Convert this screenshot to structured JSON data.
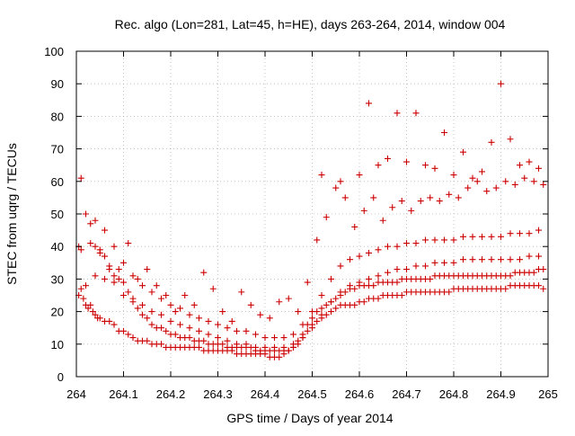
{
  "chart_data": {
    "type": "scatter",
    "title": "Rec. algo (Lon=281, Lat=45, h=HE), days 263-264, 2014, window 004",
    "xlabel": "GPS time / Days of year 2014",
    "ylabel": "STEC from uqrg / TECUs",
    "xlim": [
      264,
      265
    ],
    "ylim": [
      0,
      100
    ],
    "xticks": [
      264,
      264.1,
      264.2,
      264.3,
      264.4,
      264.5,
      264.6,
      264.7,
      264.8,
      264.9,
      265
    ],
    "xtick_labels": [
      "264",
      "264.1",
      "264.2",
      "264.3",
      "264.4",
      "264.5",
      "264.6",
      "264.7",
      "264.8",
      "264.9",
      "265"
    ],
    "yticks": [
      0,
      10,
      20,
      30,
      40,
      50,
      60,
      70,
      80,
      90,
      100
    ],
    "ytick_labels": [
      "0",
      "10",
      "20",
      "30",
      "40",
      "50",
      "60",
      "70",
      "80",
      "90",
      "100"
    ],
    "grid": true,
    "marker": "+",
    "color": "#cc0000",
    "series": [
      {
        "x": [
          264.005,
          264.01,
          264.015,
          264.02,
          264.025,
          264.03,
          264.035,
          264.04,
          264.045,
          264.05,
          264.06,
          264.07,
          264.08,
          264.09,
          264.1,
          264.11,
          264.12,
          264.13,
          264.14,
          264.15,
          264.16,
          264.17,
          264.18,
          264.19,
          264.2,
          264.21,
          264.22,
          264.23,
          264.24,
          264.25,
          264.26,
          264.27,
          264.28,
          264.29,
          264.3,
          264.31,
          264.32,
          264.33,
          264.34,
          264.35,
          264.36,
          264.37,
          264.38,
          264.39,
          264.4,
          264.41,
          264.42,
          264.43,
          264.44,
          264.45,
          264.46,
          264.47,
          264.48,
          264.49,
          264.5,
          264.51,
          264.52,
          264.53,
          264.54,
          264.55,
          264.56,
          264.57,
          264.58,
          264.59,
          264.6,
          264.61,
          264.62,
          264.63,
          264.64,
          264.65,
          264.66,
          264.67,
          264.68,
          264.69,
          264.7,
          264.71,
          264.72,
          264.73,
          264.74,
          264.75,
          264.76,
          264.77,
          264.78,
          264.79,
          264.8,
          264.81,
          264.82,
          264.83,
          264.84,
          264.85,
          264.86,
          264.87,
          264.88,
          264.89,
          264.9,
          264.91,
          264.92,
          264.93,
          264.94,
          264.95,
          264.96,
          264.97,
          264.98,
          264.99
        ],
        "y": [
          25,
          27,
          24,
          22,
          21,
          22,
          20,
          19,
          18,
          18,
          17,
          17,
          16,
          14,
          14,
          13,
          12,
          11,
          11,
          11,
          10,
          10,
          10,
          9,
          9,
          9,
          9,
          9,
          9,
          9,
          9,
          8,
          8,
          8,
          8,
          8,
          8,
          8,
          7,
          7,
          7,
          7,
          7,
          7,
          7,
          6,
          6,
          6,
          7,
          8,
          9,
          10,
          12,
          14,
          16,
          17,
          18,
          19,
          20,
          21,
          22,
          22,
          22,
          22,
          23,
          23,
          24,
          24,
          24,
          25,
          25,
          25,
          25,
          25,
          26,
          26,
          26,
          26,
          26,
          26,
          26,
          26,
          26,
          26,
          27,
          27,
          27,
          27,
          27,
          27,
          27,
          27,
          27,
          27,
          27,
          27,
          28,
          28,
          28,
          28,
          28,
          28,
          28,
          27
        ]
      },
      {
        "x": [
          264.005,
          264.01,
          264.02,
          264.03,
          264.04,
          264.05,
          264.06,
          264.07,
          264.08,
          264.09,
          264.1,
          264.11,
          264.12,
          264.13,
          264.14,
          264.15,
          264.16,
          264.17,
          264.18,
          264.19,
          264.2,
          264.21,
          264.22,
          264.23,
          264.24,
          264.25,
          264.26,
          264.27,
          264.28,
          264.29,
          264.3,
          264.31,
          264.32,
          264.33,
          264.34,
          264.35,
          264.36,
          264.37,
          264.38,
          264.39,
          264.4,
          264.41,
          264.42,
          264.43,
          264.44,
          264.45,
          264.46,
          264.47,
          264.48,
          264.49,
          264.5,
          264.51,
          264.52,
          264.53,
          264.54,
          264.55,
          264.56,
          264.57,
          264.58,
          264.59,
          264.6,
          264.61,
          264.62,
          264.63,
          264.64,
          264.65,
          264.66,
          264.67,
          264.68,
          264.69,
          264.7,
          264.71,
          264.72,
          264.73,
          264.74,
          264.75,
          264.76,
          264.77,
          264.78,
          264.79,
          264.8,
          264.81,
          264.82,
          264.83,
          264.84,
          264.85,
          264.86,
          264.87,
          264.88,
          264.89,
          264.9,
          264.91,
          264.92,
          264.93,
          264.94,
          264.95,
          264.96,
          264.97,
          264.98,
          264.99
        ],
        "y": [
          40,
          39,
          28,
          41,
          40,
          39,
          37,
          33,
          31,
          30,
          29,
          26,
          24,
          21,
          19,
          18,
          16,
          15,
          15,
          14,
          13,
          13,
          12,
          12,
          12,
          11,
          11,
          11,
          10,
          10,
          10,
          10,
          9,
          9,
          9,
          9,
          9,
          9,
          8,
          8,
          8,
          8,
          8,
          8,
          8,
          8,
          9,
          11,
          13,
          16,
          18,
          20,
          21,
          22,
          23,
          24,
          25,
          26,
          27,
          27,
          28,
          28,
          28,
          28,
          29,
          29,
          29,
          29,
          29,
          30,
          30,
          30,
          30,
          30,
          30,
          30,
          31,
          31,
          31,
          31,
          31,
          31,
          31,
          31,
          31,
          31,
          31,
          31,
          31,
          31,
          31,
          31,
          31,
          32,
          32,
          32,
          32,
          32,
          33,
          33
        ]
      },
      {
        "x": [
          264.04,
          264.06,
          264.08,
          264.1,
          264.12,
          264.14,
          264.16,
          264.18,
          264.2,
          264.22,
          264.24,
          264.26,
          264.28,
          264.3,
          264.32,
          264.34,
          264.36,
          264.38,
          264.4,
          264.42,
          264.44,
          264.46,
          264.48,
          264.5,
          264.52,
          264.54,
          264.56,
          264.58,
          264.6,
          264.62,
          264.64,
          264.66,
          264.68,
          264.7,
          264.72,
          264.74,
          264.76,
          264.78,
          264.8,
          264.82,
          264.84,
          264.86,
          264.88,
          264.9,
          264.92,
          264.94,
          264.96,
          264.98
        ],
        "y": [
          31,
          30,
          29,
          25,
          23,
          22,
          20,
          19,
          17,
          16,
          15,
          14,
          13,
          12,
          11,
          10,
          10,
          9,
          9,
          9,
          9,
          10,
          12,
          15,
          19,
          23,
          26,
          28,
          29,
          30,
          31,
          32,
          33,
          33,
          34,
          34,
          35,
          35,
          35,
          36,
          36,
          36,
          36,
          36,
          36,
          36,
          37,
          37
        ]
      },
      {
        "x": [
          264.02,
          264.04,
          264.06,
          264.08,
          264.1,
          264.12,
          264.14,
          264.16,
          264.18,
          264.2,
          264.22,
          264.24,
          264.26,
          264.28,
          264.3,
          264.32,
          264.34,
          264.36,
          264.38,
          264.4,
          264.42,
          264.44,
          264.46,
          264.48,
          264.5,
          264.52,
          264.54,
          264.56,
          264.58,
          264.6,
          264.62,
          264.64,
          264.66,
          264.68,
          264.7,
          264.72,
          264.74,
          264.76,
          264.78,
          264.8,
          264.82,
          264.84,
          264.86,
          264.88,
          264.9,
          264.92,
          264.94,
          264.96,
          264.98
        ],
        "y": [
          50,
          48,
          45,
          40,
          35,
          31,
          28,
          26,
          24,
          22,
          21,
          19,
          18,
          17,
          16,
          15,
          14,
          14,
          13,
          12,
          12,
          12,
          13,
          16,
          20,
          25,
          30,
          34,
          36,
          37,
          38,
          39,
          40,
          40,
          41,
          41,
          42,
          42,
          42,
          42,
          43,
          43,
          43,
          43,
          43,
          44,
          44,
          44,
          45
        ]
      },
      {
        "x": [
          264.01,
          264.03,
          264.05,
          264.07,
          264.09,
          264.11,
          264.13,
          264.15,
          264.17,
          264.19,
          264.21,
          264.23,
          264.25,
          264.27,
          264.29,
          264.31,
          264.33,
          264.35,
          264.37,
          264.39,
          264.41,
          264.43,
          264.45,
          264.47,
          264.49,
          264.51,
          264.53,
          264.55,
          264.57,
          264.59,
          264.61,
          264.63,
          264.65,
          264.67,
          264.69,
          264.71,
          264.73,
          264.75,
          264.77,
          264.79,
          264.81,
          264.83,
          264.85,
          264.87,
          264.89,
          264.91,
          264.93,
          264.95,
          264.97,
          264.99
        ],
        "y": [
          61,
          47,
          38,
          34,
          33,
          41,
          30,
          33,
          28,
          25,
          20,
          25,
          22,
          32,
          27,
          20,
          17,
          26,
          22,
          19,
          18,
          23,
          24,
          20,
          29,
          42,
          49,
          58,
          55,
          46,
          51,
          55,
          48,
          52,
          54,
          51,
          54,
          55,
          54,
          56,
          55,
          58,
          60,
          57,
          58,
          60,
          59,
          61,
          60,
          59
        ]
      },
      {
        "x": [
          264.52,
          264.56,
          264.6,
          264.62,
          264.64,
          264.66,
          264.68,
          264.7,
          264.72,
          264.74,
          264.76,
          264.78,
          264.8,
          264.82,
          264.84,
          264.86,
          264.88,
          264.9,
          264.92,
          264.94,
          264.96,
          264.98
        ],
        "y": [
          62,
          60,
          62,
          84,
          65,
          67,
          81,
          66,
          81,
          65,
          64,
          75,
          62,
          69,
          61,
          63,
          72,
          90,
          73,
          65,
          66,
          64
        ]
      }
    ]
  }
}
